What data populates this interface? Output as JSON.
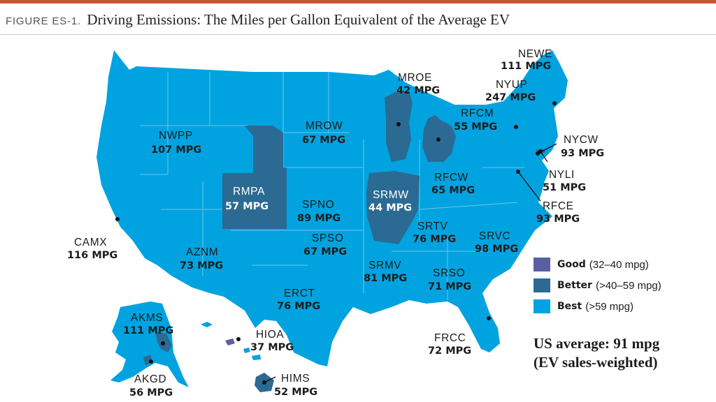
{
  "figure": {
    "label": "FIGURE ES-1.",
    "title": "Driving Emissions: The Miles per Gallon Equivalent of the Average EV"
  },
  "colors": {
    "good": "#5a5fa3",
    "better": "#2b6a92",
    "best": "#00a3e0",
    "accent_rule": "#c8553a"
  },
  "legend": [
    {
      "name": "Good",
      "range": "(32–40 mpg)",
      "category": "good"
    },
    {
      "name": "Better",
      "range": "(>40–59 mpg)",
      "category": "better"
    },
    {
      "name": "Best",
      "range": "(>59 mpg)",
      "category": "best"
    }
  ],
  "us_average": {
    "line1": "US average: 91 mpg",
    "line2": "(EV sales-weighted)"
  },
  "regions": [
    {
      "code": "NEWE",
      "value": "111 MPG",
      "category": "best"
    },
    {
      "code": "NYUP",
      "value": "247 MPG",
      "category": "best"
    },
    {
      "code": "MROE",
      "value": "42 MPG",
      "category": "better"
    },
    {
      "code": "RFCM",
      "value": "55 MPG",
      "category": "better"
    },
    {
      "code": "NYCW",
      "value": "93 MPG",
      "category": "best"
    },
    {
      "code": "NWPP",
      "value": "107 MPG",
      "category": "best"
    },
    {
      "code": "MROW",
      "value": "67 MPG",
      "category": "best"
    },
    {
      "code": "NYLI",
      "value": "51 MPG",
      "category": "better"
    },
    {
      "code": "RMPA",
      "value": "57 MPG",
      "category": "better"
    },
    {
      "code": "SRMW",
      "value": "44 MPG",
      "category": "better"
    },
    {
      "code": "RFCW",
      "value": "65 MPG",
      "category": "best"
    },
    {
      "code": "SPNO",
      "value": "89 MPG",
      "category": "best"
    },
    {
      "code": "RFCE",
      "value": "93 MPG",
      "category": "best"
    },
    {
      "code": "CAMX",
      "value": "116 MPG",
      "category": "best"
    },
    {
      "code": "SRTV",
      "value": "76 MPG",
      "category": "best"
    },
    {
      "code": "SRVC",
      "value": "98 MPG",
      "category": "best"
    },
    {
      "code": "SPSO",
      "value": "67 MPG",
      "category": "best"
    },
    {
      "code": "AZNM",
      "value": "73 MPG",
      "category": "best"
    },
    {
      "code": "SRMV",
      "value": "81 MPG",
      "category": "best"
    },
    {
      "code": "SRSO",
      "value": "71 MPG",
      "category": "best"
    },
    {
      "code": "ERCT",
      "value": "76 MPG",
      "category": "best"
    },
    {
      "code": "AKMS",
      "value": "111 MPG",
      "category": "best"
    },
    {
      "code": "HIOA",
      "value": "37 MPG",
      "category": "good"
    },
    {
      "code": "FRCC",
      "value": "72 MPG",
      "category": "best"
    },
    {
      "code": "AKGD",
      "value": "56 MPG",
      "category": "better"
    },
    {
      "code": "HIMS",
      "value": "52 MPG",
      "category": "better"
    }
  ]
}
